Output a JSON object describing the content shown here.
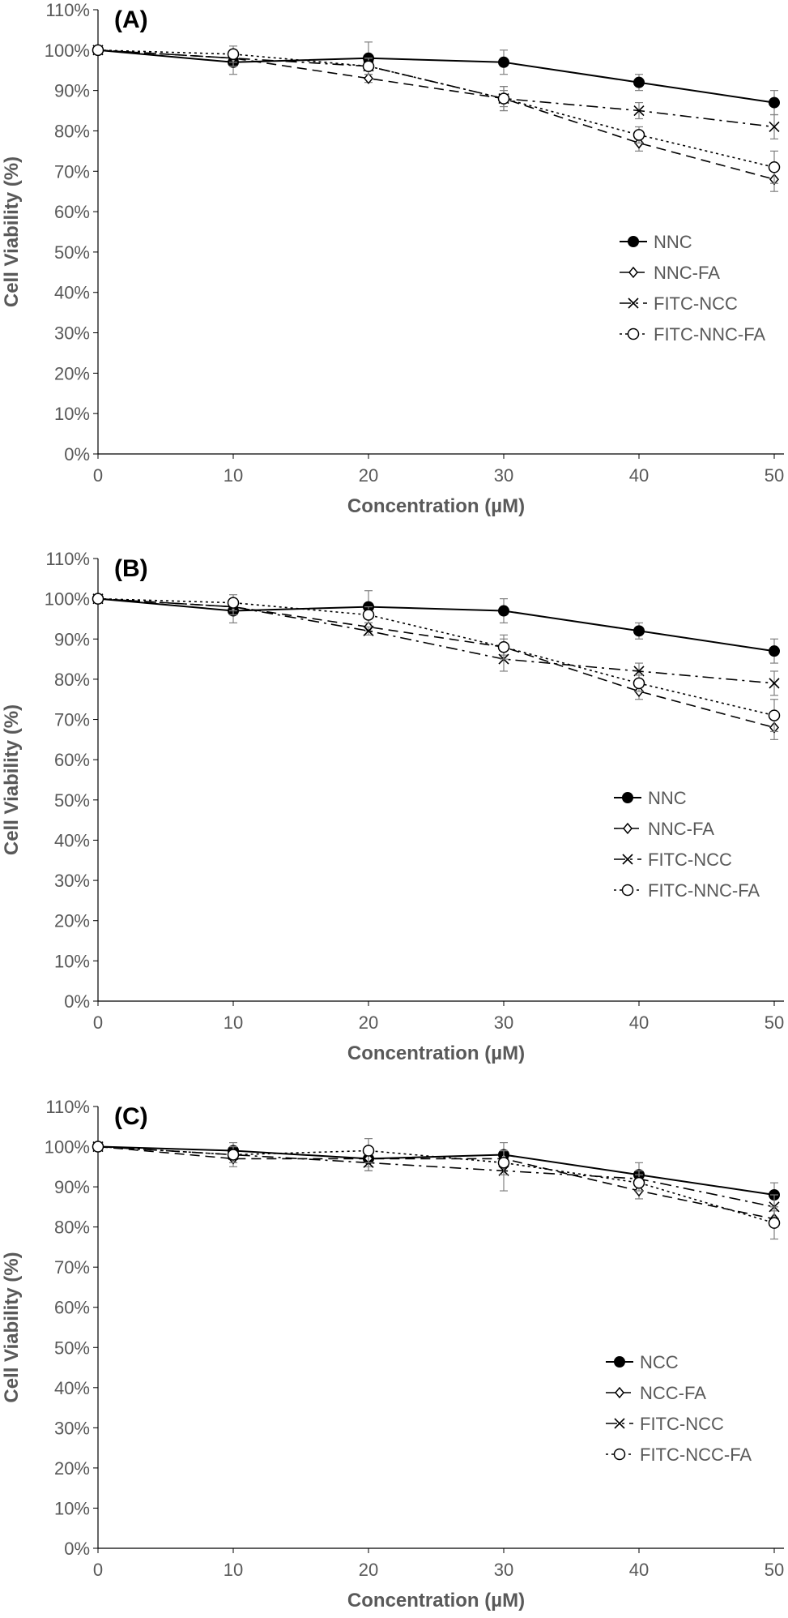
{
  "colors": {
    "series": "#000000",
    "axis_text": "#595959",
    "axis_line": "#000000",
    "error_bar": "#808080"
  },
  "chart_data": [
    {
      "type": "line",
      "panel_label": "(A)",
      "xlabel": "Concentration (µM)",
      "ylabel": "Cell Viability (%)",
      "x": [
        0,
        10,
        20,
        30,
        40,
        50
      ],
      "x_ticks": [
        "0",
        "10",
        "20",
        "30",
        "40",
        "50"
      ],
      "ylim": [
        0,
        110
      ],
      "y_ticks": [
        "0%",
        "10%",
        "20%",
        "30%",
        "40%",
        "50%",
        "60%",
        "70%",
        "80%",
        "90%",
        "100%",
        "110%"
      ],
      "legend_position": "middle-right",
      "series": [
        {
          "name": "NNC",
          "marker": "filled-circle",
          "line": "solid",
          "values": [
            100,
            97,
            98,
            97,
            92,
            87
          ],
          "errors": [
            0,
            3,
            4,
            3,
            2,
            3
          ]
        },
        {
          "name": "NNC-FA",
          "marker": "diamond",
          "line": "dashed",
          "values": [
            100,
            98,
            93,
            88,
            77,
            68
          ],
          "errors": [
            0,
            2,
            1,
            2,
            2,
            3
          ]
        },
        {
          "name": "FITC-NCC",
          "marker": "x",
          "line": "dash-dot",
          "values": [
            100,
            98,
            96,
            88,
            85,
            81
          ],
          "errors": [
            0,
            2,
            2,
            3,
            2,
            3
          ]
        },
        {
          "name": "FITC-NNC-FA",
          "marker": "open-circle",
          "line": "dotted",
          "values": [
            100,
            99,
            96,
            88,
            79,
            71
          ],
          "errors": [
            0,
            2,
            2,
            3,
            2,
            4
          ]
        }
      ]
    },
    {
      "type": "line",
      "panel_label": "(B)",
      "xlabel": "Concentration (µM)",
      "ylabel": "Cell Viability (%)",
      "x": [
        0,
        10,
        20,
        30,
        40,
        50
      ],
      "x_ticks": [
        "0",
        "10",
        "20",
        "30",
        "40",
        "50"
      ],
      "ylim": [
        0,
        110
      ],
      "y_ticks": [
        "0%",
        "10%",
        "20%",
        "30%",
        "40%",
        "50%",
        "60%",
        "70%",
        "80%",
        "90%",
        "100%",
        "110%"
      ],
      "legend_position": "middle-right",
      "series": [
        {
          "name": "NNC",
          "marker": "filled-circle",
          "line": "solid",
          "values": [
            100,
            97,
            98,
            97,
            92,
            87
          ],
          "errors": [
            0,
            3,
            4,
            3,
            2,
            3
          ]
        },
        {
          "name": "NNC-FA",
          "marker": "diamond",
          "line": "dashed",
          "values": [
            100,
            98,
            93,
            88,
            77,
            68
          ],
          "errors": [
            0,
            2,
            1,
            2,
            2,
            3
          ]
        },
        {
          "name": "FITC-NCC",
          "marker": "x",
          "line": "dash-dot",
          "values": [
            100,
            98,
            92,
            85,
            82,
            79
          ],
          "errors": [
            0,
            2,
            1,
            3,
            2,
            3
          ]
        },
        {
          "name": "FITC-NNC-FA",
          "marker": "open-circle",
          "line": "dotted",
          "values": [
            100,
            99,
            96,
            88,
            79,
            71
          ],
          "errors": [
            0,
            2,
            2,
            3,
            2,
            4
          ]
        }
      ]
    },
    {
      "type": "line",
      "panel_label": "(C)",
      "xlabel": "Concentration (µM)",
      "ylabel": "Cell Viability (%)",
      "x": [
        0,
        10,
        20,
        30,
        40,
        50
      ],
      "x_ticks": [
        "0",
        "10",
        "20",
        "30",
        "40",
        "50"
      ],
      "ylim": [
        0,
        110
      ],
      "y_ticks": [
        "0%",
        "10%",
        "20%",
        "30%",
        "40%",
        "50%",
        "60%",
        "70%",
        "80%",
        "90%",
        "100%",
        "110%"
      ],
      "legend_position": "middle-right",
      "series": [
        {
          "name": "NCC",
          "marker": "filled-circle",
          "line": "solid",
          "values": [
            100,
            99,
            97,
            98,
            93,
            88
          ],
          "errors": [
            0,
            2,
            3,
            3,
            3,
            3
          ]
        },
        {
          "name": "NCC-FA",
          "marker": "diamond",
          "line": "dashed",
          "values": [
            100,
            97,
            97,
            97,
            89,
            82
          ],
          "errors": [
            0,
            2,
            2,
            2,
            2,
            2
          ]
        },
        {
          "name": "FITC-NCC",
          "marker": "x",
          "line": "dash-dot",
          "values": [
            100,
            98,
            96,
            94,
            92,
            85
          ],
          "errors": [
            0,
            2,
            2,
            5,
            2,
            3
          ]
        },
        {
          "name": "FITC-NCC-FA",
          "marker": "open-circle",
          "line": "dotted",
          "values": [
            100,
            98,
            99,
            96,
            91,
            81
          ],
          "errors": [
            0,
            2,
            3,
            3,
            2,
            4
          ]
        }
      ]
    }
  ]
}
